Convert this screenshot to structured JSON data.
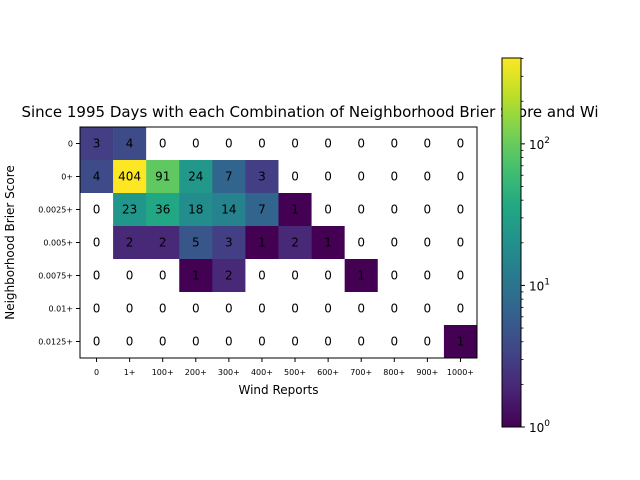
{
  "chart_data": {
    "type": "heatmap",
    "title": "Since 1995 Days with each Combination of Neighborhood Brier Score and Wi",
    "xlabel": "Wind Reports",
    "ylabel": "Neighborhood Brier Score",
    "x_categories": [
      "0",
      "1+",
      "100+",
      "200+",
      "300+",
      "400+",
      "500+",
      "600+",
      "700+",
      "800+",
      "900+",
      "1000+"
    ],
    "y_categories": [
      "0",
      "0+",
      "0.0025+",
      "0.005+",
      "0.0075+",
      "0.01+",
      "0.0125+"
    ],
    "values": [
      [
        3,
        4,
        0,
        0,
        0,
        0,
        0,
        0,
        0,
        0,
        0,
        0
      ],
      [
        4,
        404,
        91,
        24,
        7,
        3,
        0,
        0,
        0,
        0,
        0,
        0
      ],
      [
        0,
        23,
        36,
        18,
        14,
        7,
        1,
        0,
        0,
        0,
        0,
        0
      ],
      [
        0,
        2,
        2,
        5,
        3,
        1,
        2,
        1,
        0,
        0,
        0,
        0
      ],
      [
        0,
        0,
        0,
        1,
        2,
        0,
        0,
        0,
        1,
        0,
        0,
        0
      ],
      [
        0,
        0,
        0,
        0,
        0,
        0,
        0,
        0,
        0,
        0,
        0,
        0
      ],
      [
        0,
        0,
        0,
        0,
        0,
        0,
        0,
        0,
        0,
        0,
        0,
        1
      ]
    ],
    "zero_cells_color": "#ffffff",
    "colormap": "viridis",
    "color_scale": "log",
    "color_range": [
      1,
      404
    ],
    "colorbar": {
      "ticks": [
        {
          "base": "10",
          "exp": "0",
          "value": 1
        },
        {
          "base": "10",
          "exp": "1",
          "value": 10
        },
        {
          "base": "10",
          "exp": "2",
          "value": 100
        }
      ]
    }
  }
}
